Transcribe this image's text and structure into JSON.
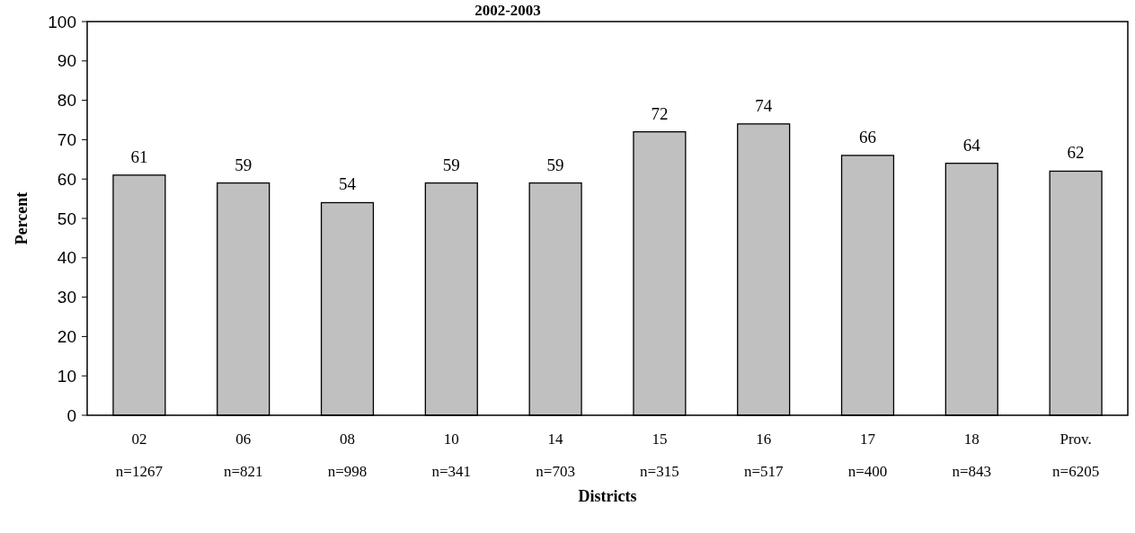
{
  "chart_data": {
    "type": "bar",
    "title": "2002-2003",
    "xlabel": "Districts",
    "ylabel": "Percent",
    "categories": [
      "02\nn=1267",
      "06\nn=821",
      "08\nn=998",
      "10\nn=341",
      "14\nn=703",
      "15\nn=315",
      "16\nn=517",
      "17\nn=400",
      "18\nn=843",
      "Prov.\nn=6205"
    ],
    "values": [
      61,
      59,
      54,
      59,
      59,
      72,
      74,
      66,
      64,
      62
    ],
    "color": "#c0c0c0",
    "ylim": [
      0,
      100
    ],
    "yticks": [
      0,
      10,
      20,
      30,
      40,
      50,
      60,
      70,
      80,
      90,
      100
    ],
    "grid": false,
    "data_labels": true
  }
}
